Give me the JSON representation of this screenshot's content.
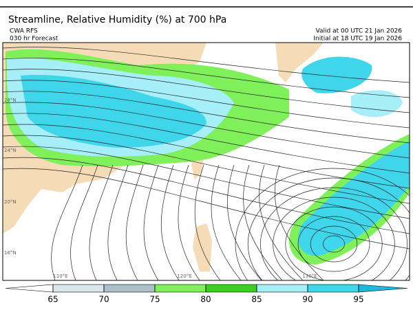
{
  "header": {
    "title": "Streamline, Relative Humidity (%) at 700 hPa",
    "model": "CWA RFS",
    "forecast": "030 hr Forecast",
    "valid": "Valid at 00 UTC 21 Jan 2026",
    "initial": "Initial at 18 UTC 19 Jan 2026"
  },
  "map": {
    "lat_labels": [
      "28°N",
      "24°N",
      "20°N",
      "16°N"
    ],
    "lon_labels": [
      "110°E",
      "120°E",
      "130°E"
    ]
  },
  "colorbar": {
    "ticks": [
      65,
      70,
      75,
      80,
      85,
      90,
      95
    ],
    "colors": [
      "#ffffff",
      "#d9e6ec",
      "#a9bfc9",
      "#7ff05a",
      "#3ccf22",
      "#a6eef8",
      "#3fd6ec",
      "#1cb9dc"
    ]
  }
}
